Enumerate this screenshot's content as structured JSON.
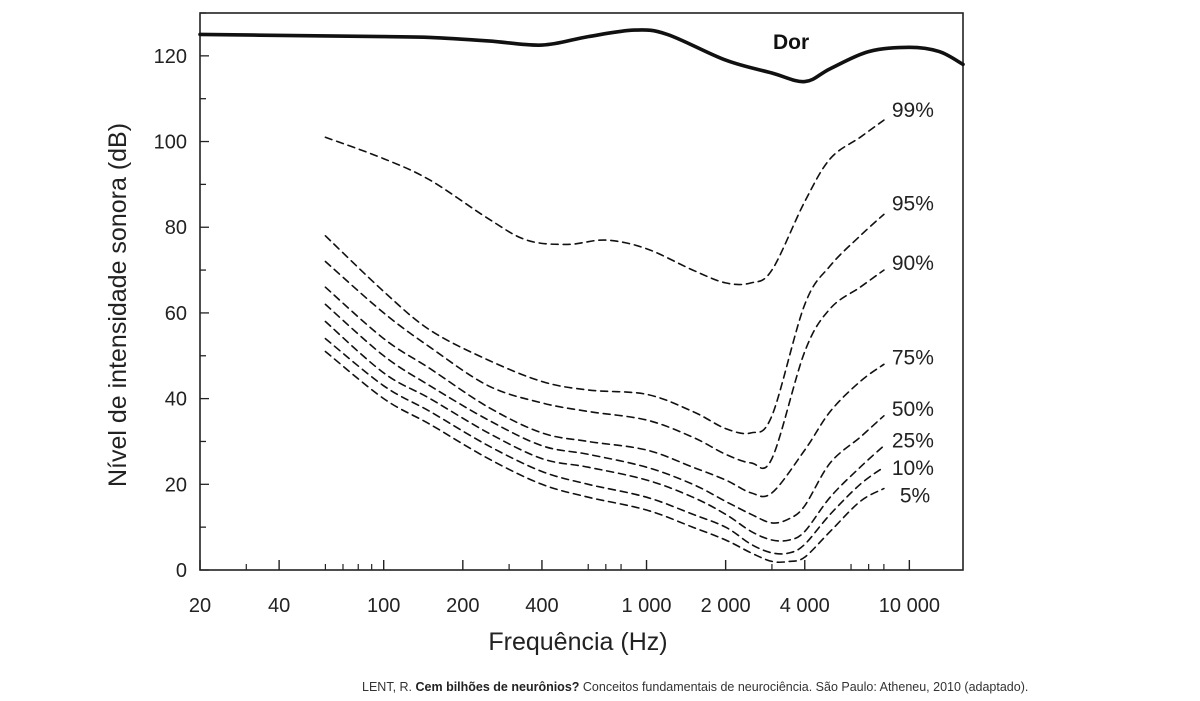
{
  "chart_data": {
    "type": "line",
    "xscale": "log",
    "xlabel": "Frequência (Hz)",
    "ylabel": "Nível de intensidade sonora (dB)",
    "xlim": [
      20,
      16000
    ],
    "ylim": [
      0,
      130
    ],
    "grid": false,
    "xticks": [
      {
        "value": 20,
        "label": "20"
      },
      {
        "value": 40,
        "label": "40"
      },
      {
        "value": 100,
        "label": "100"
      },
      {
        "value": 200,
        "label": "200"
      },
      {
        "value": 400,
        "label": "400"
      },
      {
        "value": 1000,
        "label": "1 000"
      },
      {
        "value": 2000,
        "label": "2 000"
      },
      {
        "value": 4000,
        "label": "4 000"
      },
      {
        "value": 10000,
        "label": "10 000"
      }
    ],
    "yticks": [
      {
        "value": 0,
        "label": "0"
      },
      {
        "value": 20,
        "label": "20"
      },
      {
        "value": 40,
        "label": "40"
      },
      {
        "value": 60,
        "label": "60"
      },
      {
        "value": 80,
        "label": "80"
      },
      {
        "value": 100,
        "label": "100"
      },
      {
        "value": 120,
        "label": "120"
      }
    ],
    "series": [
      {
        "name": "Dor",
        "style": "solid",
        "x": [
          20,
          50,
          100,
          150,
          250,
          400,
          600,
          900,
          1200,
          2000,
          3000,
          4000,
          5000,
          7000,
          10000,
          13000,
          16000
        ],
        "y": [
          125,
          124.7,
          124.5,
          124.3,
          123.5,
          122.5,
          124.5,
          126,
          125,
          119,
          116,
          114,
          117,
          121,
          122,
          121,
          118
        ]
      },
      {
        "name": "99%",
        "style": "dashed",
        "x": [
          60,
          100,
          150,
          250,
          350,
          500,
          700,
          1000,
          1500,
          2000,
          2500,
          3000,
          4000,
          5000,
          6500,
          8000
        ],
        "y": [
          101,
          96,
          91,
          82,
          77,
          76,
          77,
          75,
          70,
          67,
          67,
          70,
          86,
          96,
          101,
          105
        ]
      },
      {
        "name": "95%",
        "style": "dashed",
        "x": [
          60,
          100,
          150,
          250,
          400,
          600,
          1000,
          1500,
          2000,
          2500,
          3000,
          4000,
          5000,
          6500,
          8000
        ],
        "y": [
          78,
          65,
          56,
          49,
          44,
          42,
          41,
          37,
          33,
          32,
          36,
          62,
          71,
          78,
          83
        ]
      },
      {
        "name": "90%",
        "style": "dashed",
        "x": [
          60,
          100,
          150,
          250,
          400,
          600,
          1000,
          1500,
          2000,
          2500,
          3000,
          4000,
          5000,
          6500,
          8000
        ],
        "y": [
          72,
          60,
          52,
          43,
          39,
          37,
          35,
          31,
          27,
          25,
          26,
          51,
          61,
          66,
          70
        ]
      },
      {
        "name": "75%",
        "style": "dashed",
        "x": [
          60,
          100,
          150,
          250,
          400,
          600,
          1000,
          1500,
          2000,
          2500,
          3000,
          4000,
          5000,
          6500,
          8000
        ],
        "y": [
          66,
          54,
          47,
          38,
          32,
          30,
          28,
          24,
          21,
          18,
          18,
          28,
          37,
          44,
          48
        ]
      },
      {
        "name": "50%",
        "style": "dashed",
        "x": [
          60,
          100,
          150,
          250,
          400,
          600,
          1000,
          1500,
          2000,
          2500,
          3000,
          3500,
          4000,
          5000,
          6500,
          8000
        ],
        "y": [
          62,
          50,
          43,
          35,
          29,
          27,
          24,
          20,
          16,
          13,
          11,
          12,
          15,
          25,
          31,
          36
        ]
      },
      {
        "name": "25%",
        "style": "dashed",
        "x": [
          60,
          100,
          150,
          250,
          400,
          600,
          1000,
          1500,
          2000,
          2500,
          3000,
          3500,
          4000,
          5000,
          6500,
          8000
        ],
        "y": [
          58,
          46,
          40,
          32,
          26,
          24,
          21,
          17,
          13,
          9,
          7,
          7,
          9,
          17,
          24,
          29
        ]
      },
      {
        "name": "10%",
        "style": "dashed",
        "x": [
          60,
          100,
          150,
          250,
          400,
          600,
          1000,
          1500,
          2000,
          2500,
          3000,
          3500,
          4000,
          5000,
          6500,
          8000
        ],
        "y": [
          54,
          43,
          37,
          29,
          23,
          20,
          17,
          13,
          10,
          6,
          4,
          4,
          6,
          13,
          20,
          24
        ]
      },
      {
        "name": "5%",
        "style": "dashed",
        "x": [
          60,
          100,
          150,
          250,
          400,
          600,
          1000,
          1500,
          2000,
          2500,
          3000,
          3500,
          4000,
          5000,
          6500,
          8000
        ],
        "y": [
          51,
          40,
          34,
          26,
          20,
          17,
          14,
          10,
          7,
          4,
          2,
          2,
          3,
          9,
          16,
          19
        ]
      }
    ]
  },
  "caption": {
    "author": "LENT, R. ",
    "title": "Cem bilhões de neurônios?",
    "rest": " Conceitos fundamentais de neurociência. São Paulo: Atheneu, 2010 (adaptado)."
  }
}
